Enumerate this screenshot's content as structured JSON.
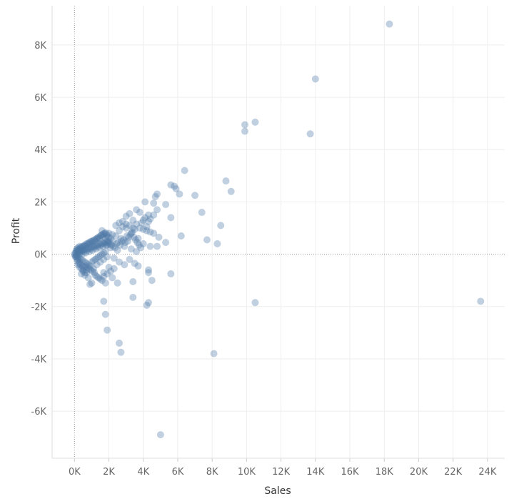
{
  "chart_data": {
    "type": "scatter",
    "title": "",
    "xlabel": "Sales",
    "ylabel": "Profit",
    "xlim": [
      -1300,
      25000
    ],
    "ylim": [
      -7800,
      9500
    ],
    "x_ticks": [
      0,
      2000,
      4000,
      6000,
      8000,
      10000,
      12000,
      14000,
      16000,
      18000,
      20000,
      22000,
      24000
    ],
    "x_tick_labels": [
      "0K",
      "2K",
      "4K",
      "6K",
      "8K",
      "10K",
      "12K",
      "14K",
      "16K",
      "18K",
      "20K",
      "22K",
      "24K"
    ],
    "y_ticks": [
      8000,
      6000,
      4000,
      2000,
      0,
      -2000,
      -4000,
      -6000
    ],
    "y_tick_labels": [
      "8K",
      "6K",
      "4K",
      "2K",
      "0K",
      "-2K",
      "-4K",
      "-6K"
    ],
    "grid": true,
    "marker_color": "#4e79a7",
    "marker_opacity": 0.35,
    "series": [
      {
        "points": [
          [
            18300,
            8800
          ],
          [
            14000,
            6700
          ],
          [
            10500,
            5050
          ],
          [
            9900,
            4950
          ],
          [
            9900,
            4700
          ],
          [
            13700,
            4600
          ],
          [
            6400,
            3200
          ],
          [
            8800,
            2800
          ],
          [
            5600,
            2650
          ],
          [
            5800,
            2600
          ],
          [
            5900,
            2500
          ],
          [
            9100,
            2400
          ],
          [
            6100,
            2300
          ],
          [
            7000,
            2250
          ],
          [
            4800,
            2300
          ],
          [
            4700,
            2200
          ],
          [
            4100,
            2000
          ],
          [
            4600,
            1950
          ],
          [
            5300,
            1900
          ],
          [
            4800,
            1700
          ],
          [
            7400,
            1600
          ],
          [
            4300,
            1500
          ],
          [
            5600,
            1400
          ],
          [
            8500,
            1100
          ],
          [
            6200,
            700
          ],
          [
            7700,
            550
          ],
          [
            8300,
            400
          ],
          [
            5300,
            450
          ],
          [
            4800,
            300
          ],
          [
            4900,
            650
          ],
          [
            5600,
            -750
          ],
          [
            4300,
            -700
          ],
          [
            4300,
            -600
          ],
          [
            3700,
            -450
          ],
          [
            4500,
            -1000
          ],
          [
            3400,
            -1050
          ],
          [
            3400,
            -1650
          ],
          [
            4300,
            -1850
          ],
          [
            4200,
            -1950
          ],
          [
            10500,
            -1850
          ],
          [
            23600,
            -1800
          ],
          [
            1700,
            -1800
          ],
          [
            1800,
            -2300
          ],
          [
            1900,
            -2900
          ],
          [
            2600,
            -3400
          ],
          [
            2700,
            -3750
          ],
          [
            8100,
            -3800
          ],
          [
            5000,
            -6900
          ],
          [
            3000,
            1450
          ],
          [
            3200,
            1550
          ],
          [
            3400,
            1300
          ],
          [
            3600,
            1700
          ],
          [
            3800,
            1600
          ],
          [
            2800,
            1250
          ],
          [
            3000,
            1000
          ],
          [
            3500,
            950
          ],
          [
            3900,
            1200
          ],
          [
            4200,
            1050
          ],
          [
            3300,
            800
          ],
          [
            2600,
            900
          ],
          [
            2400,
            700
          ],
          [
            2700,
            600
          ],
          [
            3100,
            500
          ],
          [
            3700,
            600
          ],
          [
            4000,
            400
          ],
          [
            4400,
            300
          ],
          [
            2900,
            300
          ],
          [
            3300,
            200
          ],
          [
            3600,
            100
          ],
          [
            2500,
            150
          ],
          [
            2200,
            500
          ],
          [
            2000,
            800
          ],
          [
            1800,
            600
          ],
          [
            1600,
            900
          ],
          [
            1900,
            350
          ],
          [
            2100,
            250
          ],
          [
            2300,
            -150
          ],
          [
            2600,
            -300
          ],
          [
            2900,
            -400
          ],
          [
            3200,
            -200
          ],
          [
            3500,
            -350
          ],
          [
            2000,
            -500
          ],
          [
            1700,
            -700
          ],
          [
            1600,
            -1000
          ],
          [
            1800,
            -1100
          ],
          [
            2200,
            -900
          ],
          [
            2500,
            -1100
          ],
          [
            1400,
            -900
          ],
          [
            1200,
            -800
          ],
          [
            1000,
            -1100
          ],
          [
            900,
            -1150
          ],
          [
            800,
            -900
          ],
          [
            700,
            -700
          ],
          [
            600,
            -800
          ],
          [
            500,
            -600
          ],
          [
            400,
            -750
          ],
          [
            1100,
            -550
          ],
          [
            1300,
            -400
          ],
          [
            1500,
            -300
          ],
          [
            1700,
            -200
          ],
          [
            1900,
            -100
          ],
          [
            300,
            -300
          ],
          [
            200,
            -200
          ],
          [
            150,
            -150
          ],
          [
            100,
            -100
          ],
          [
            50,
            -50
          ],
          [
            0,
            0
          ],
          [
            50,
            50
          ],
          [
            100,
            80
          ],
          [
            150,
            120
          ],
          [
            200,
            150
          ],
          [
            250,
            180
          ],
          [
            300,
            200
          ],
          [
            350,
            150
          ],
          [
            400,
            250
          ],
          [
            450,
            300
          ],
          [
            500,
            280
          ],
          [
            550,
            320
          ],
          [
            600,
            350
          ],
          [
            650,
            300
          ],
          [
            700,
            400
          ],
          [
            750,
            380
          ],
          [
            800,
            420
          ],
          [
            850,
            450
          ],
          [
            900,
            400
          ],
          [
            950,
            480
          ],
          [
            1000,
            500
          ],
          [
            1050,
            460
          ],
          [
            1100,
            520
          ],
          [
            1150,
            550
          ],
          [
            1200,
            500
          ],
          [
            1250,
            580
          ],
          [
            1300,
            600
          ],
          [
            1350,
            620
          ],
          [
            1400,
            650
          ],
          [
            1450,
            600
          ],
          [
            1500,
            700
          ],
          [
            1550,
            720
          ],
          [
            1600,
            750
          ],
          [
            1650,
            680
          ],
          [
            1700,
            780
          ],
          [
            1750,
            800
          ],
          [
            1800,
            820
          ],
          [
            1850,
            750
          ],
          [
            1900,
            700
          ],
          [
            2000,
            650
          ],
          [
            2100,
            600
          ],
          [
            2200,
            750
          ],
          [
            100,
            -50
          ],
          [
            200,
            -100
          ],
          [
            300,
            -150
          ],
          [
            400,
            -200
          ],
          [
            500,
            -250
          ],
          [
            600,
            -300
          ],
          [
            700,
            -350
          ],
          [
            800,
            -400
          ],
          [
            900,
            -450
          ],
          [
            1000,
            -300
          ],
          [
            1100,
            -250
          ],
          [
            1200,
            -200
          ],
          [
            1300,
            -150
          ],
          [
            1400,
            -100
          ],
          [
            1500,
            -50
          ],
          [
            1600,
            0
          ],
          [
            1700,
            50
          ],
          [
            1800,
            100
          ],
          [
            200,
            50
          ],
          [
            300,
            100
          ],
          [
            400,
            120
          ],
          [
            500,
            150
          ],
          [
            600,
            180
          ],
          [
            700,
            200
          ],
          [
            800,
            220
          ],
          [
            900,
            250
          ],
          [
            1000,
            280
          ],
          [
            1100,
            300
          ],
          [
            1200,
            320
          ],
          [
            1300,
            350
          ],
          [
            1400,
            380
          ],
          [
            1500,
            400
          ],
          [
            1600,
            420
          ],
          [
            1700,
            440
          ],
          [
            1800,
            460
          ],
          [
            1900,
            480
          ],
          [
            2000,
            500
          ],
          [
            250,
            0
          ],
          [
            350,
            50
          ],
          [
            450,
            0
          ],
          [
            550,
            100
          ],
          [
            650,
            50
          ],
          [
            750,
            150
          ],
          [
            850,
            100
          ],
          [
            950,
            200
          ],
          [
            1050,
            150
          ],
          [
            1150,
            250
          ],
          [
            1250,
            200
          ],
          [
            1350,
            300
          ],
          [
            1450,
            250
          ],
          [
            1550,
            350
          ],
          [
            1650,
            300
          ],
          [
            1750,
            400
          ],
          [
            1850,
            350
          ],
          [
            1950,
            450
          ],
          [
            2050,
            400
          ],
          [
            2150,
            350
          ],
          [
            2250,
            300
          ],
          [
            2350,
            250
          ],
          [
            2450,
            400
          ],
          [
            2550,
            450
          ],
          [
            2650,
            350
          ],
          [
            2750,
            500
          ],
          [
            2850,
            550
          ],
          [
            2950,
            450
          ],
          [
            3050,
            700
          ],
          [
            3150,
            650
          ],
          [
            3250,
            750
          ],
          [
            3350,
            850
          ],
          [
            3450,
            650
          ],
          [
            3550,
            550
          ],
          [
            3650,
            450
          ],
          [
            3750,
            350
          ],
          [
            3850,
            250
          ],
          [
            2400,
            1100
          ],
          [
            2600,
            1200
          ],
          [
            2800,
            1050
          ],
          [
            3000,
            1150
          ],
          [
            3200,
            1100
          ],
          [
            3400,
            1000
          ],
          [
            3600,
            1150
          ],
          [
            3800,
            1000
          ],
          [
            4000,
            950
          ],
          [
            4200,
            900
          ],
          [
            4400,
            850
          ],
          [
            4600,
            800
          ],
          [
            4100,
            1400
          ],
          [
            4400,
            1350
          ],
          [
            4600,
            1500
          ],
          [
            4300,
            1250
          ],
          [
            4000,
            1300
          ],
          [
            100,
            150
          ],
          [
            200,
            250
          ],
          [
            300,
            300
          ],
          [
            150,
            200
          ],
          [
            250,
            100
          ],
          [
            350,
            250
          ],
          [
            450,
            150
          ],
          [
            50,
            -100
          ],
          [
            150,
            -250
          ],
          [
            250,
            -350
          ],
          [
            350,
            -400
          ],
          [
            450,
            -450
          ],
          [
            550,
            -500
          ],
          [
            650,
            -450
          ],
          [
            750,
            -500
          ],
          [
            850,
            -550
          ],
          [
            950,
            -600
          ],
          [
            1050,
            -650
          ],
          [
            1150,
            -700
          ],
          [
            300,
            -500
          ],
          [
            400,
            -550
          ],
          [
            500,
            -650
          ],
          [
            600,
            -700
          ],
          [
            700,
            -600
          ],
          [
            200,
            -400
          ],
          [
            1300,
            -850
          ],
          [
            1500,
            -950
          ],
          [
            1700,
            -850
          ],
          [
            1900,
            -750
          ],
          [
            2100,
            -650
          ],
          [
            2300,
            -550
          ]
        ]
      }
    ]
  }
}
